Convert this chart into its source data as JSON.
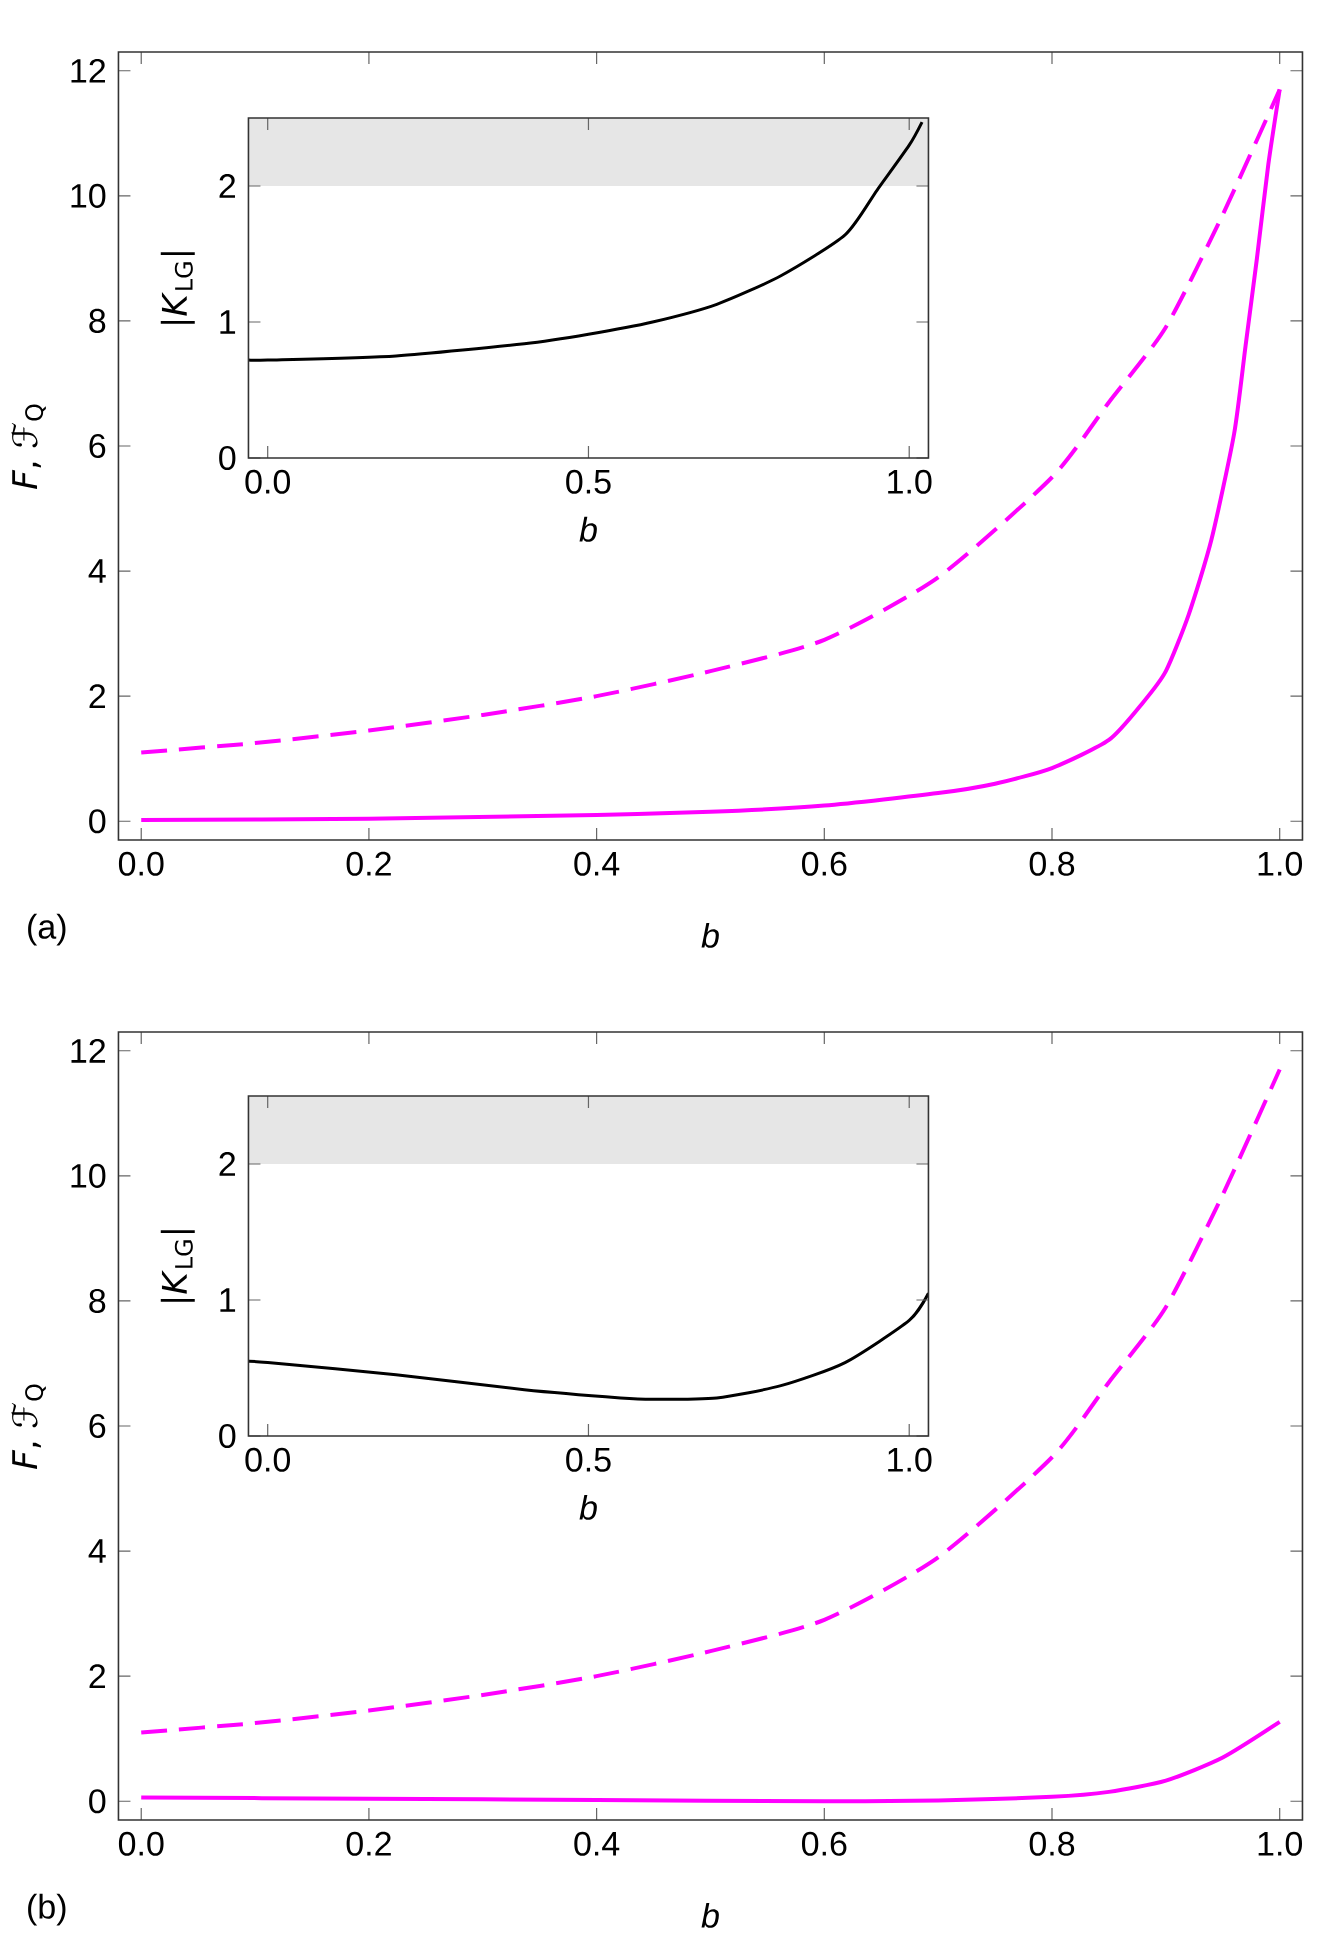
{
  "chart_data": [
    {
      "type": "line",
      "xlabel": "*b*",
      "ylabel": "*F*, ℱ$_{Q}$",
      "annotations": [
        "(a)"
      ],
      "xlim": [
        -0.02,
        1.02
      ],
      "ylim": [
        -0.3,
        12.3
      ],
      "xticks": [
        {
          "value": 0,
          "label": "0.0"
        },
        {
          "value": 0.2,
          "label": "0.2"
        },
        {
          "value": 0.4,
          "label": "0.4"
        },
        {
          "value": 0.6,
          "label": "0.6"
        },
        {
          "value": 0.8,
          "label": "0.8"
        },
        {
          "value": 1,
          "label": "1.0"
        }
      ],
      "yticks": [
        0,
        2,
        4,
        6,
        8,
        10,
        12
      ],
      "series": [
        {
          "color": "#ff00ff",
          "line_style": "dashed",
          "x": [
            0,
            0.1,
            0.2,
            0.3,
            0.4,
            0.5,
            0.6,
            0.7,
            0.8,
            0.85,
            0.9,
            0.95,
            1.0
          ],
          "values": [
            1.1,
            1.25,
            1.45,
            1.7,
            2.0,
            2.4,
            2.9,
            3.9,
            5.5,
            6.7,
            7.9,
            9.7,
            11.7
          ]
        },
        {
          "color": "#ff00ff",
          "line_style": "solid",
          "x": [
            0,
            0.2,
            0.4,
            0.5,
            0.6,
            0.7,
            0.75,
            0.8,
            0.85,
            0.88,
            0.9,
            0.92,
            0.94,
            0.96,
            0.97,
            0.98,
            0.99,
            1.0
          ],
          "values": [
            0.02,
            0.04,
            0.1,
            0.15,
            0.25,
            0.45,
            0.6,
            0.85,
            1.3,
            1.9,
            2.4,
            3.3,
            4.5,
            6.2,
            7.6,
            9.0,
            10.5,
            11.7
          ]
        }
      ]
    },
    {
      "type": "line",
      "xlabel": "*b*",
      "ylabel": "|*K*$_{LG}$|",
      "xlim": [
        -0.03,
        1.03
      ],
      "ylim": [
        0,
        2.5
      ],
      "xticks": [
        {
          "value": 0,
          "label": "0.0"
        },
        {
          "value": 0.5,
          "label": "0.5"
        },
        {
          "value": 1,
          "label": "1.0"
        }
      ],
      "yticks": [
        0,
        1,
        2
      ],
      "bands": [
        {
          "axis": "y",
          "from": 2,
          "to": 2.5,
          "color": "#e6e6e6"
        }
      ],
      "series": [
        {
          "color": "#000000",
          "line_style": "solid",
          "x": [
            -0.03,
            0,
            0.2,
            0.4,
            0.5,
            0.6,
            0.7,
            0.8,
            0.9,
            0.95,
            1.0,
            1.02
          ],
          "values": [
            0.72,
            0.72,
            0.75,
            0.84,
            0.91,
            1.0,
            1.13,
            1.34,
            1.64,
            1.97,
            2.3,
            2.47
          ]
        }
      ]
    },
    {
      "type": "line",
      "xlabel": "*b*",
      "ylabel": "*F*, ℱ$_{Q}$",
      "annotations": [
        "(b)"
      ],
      "xlim": [
        -0.02,
        1.02
      ],
      "ylim": [
        -0.3,
        12.3
      ],
      "xticks": [
        {
          "value": 0,
          "label": "0.0"
        },
        {
          "value": 0.2,
          "label": "0.2"
        },
        {
          "value": 0.4,
          "label": "0.4"
        },
        {
          "value": 0.6,
          "label": "0.6"
        },
        {
          "value": 0.8,
          "label": "0.8"
        },
        {
          "value": 1,
          "label": "1.0"
        }
      ],
      "yticks": [
        0,
        2,
        4,
        6,
        8,
        10,
        12
      ],
      "series": [
        {
          "color": "#ff00ff",
          "line_style": "dashed",
          "x": [
            0,
            0.1,
            0.2,
            0.3,
            0.4,
            0.5,
            0.6,
            0.7,
            0.8,
            0.85,
            0.9,
            0.95,
            1.0
          ],
          "values": [
            1.1,
            1.25,
            1.45,
            1.7,
            2.0,
            2.4,
            2.9,
            3.9,
            5.5,
            6.7,
            7.9,
            9.7,
            11.7
          ]
        },
        {
          "color": "#ff00ff",
          "line_style": "solid",
          "x": [
            0,
            0.2,
            0.4,
            0.6,
            0.7,
            0.8,
            0.85,
            0.9,
            0.95,
            1.0
          ],
          "values": [
            0.06,
            0.04,
            0.02,
            0.0,
            0.01,
            0.07,
            0.15,
            0.33,
            0.7,
            1.27
          ]
        }
      ]
    },
    {
      "type": "line",
      "xlabel": "*b*",
      "ylabel": "|*K*$_{LG}$|",
      "xlim": [
        -0.03,
        1.03
      ],
      "ylim": [
        0,
        2.5
      ],
      "xticks": [
        {
          "value": 0,
          "label": "0.0"
        },
        {
          "value": 0.5,
          "label": "0.5"
        },
        {
          "value": 1,
          "label": "1.0"
        }
      ],
      "yticks": [
        0,
        1,
        2
      ],
      "bands": [
        {
          "axis": "y",
          "from": 2,
          "to": 2.5,
          "color": "#e6e6e6"
        }
      ],
      "series": [
        {
          "color": "#000000",
          "line_style": "solid",
          "x": [
            -0.03,
            0,
            0.2,
            0.4,
            0.55,
            0.6,
            0.7,
            0.8,
            0.9,
            1.0,
            1.03
          ],
          "values": [
            0.55,
            0.54,
            0.45,
            0.34,
            0.28,
            0.27,
            0.28,
            0.37,
            0.54,
            0.85,
            1.05
          ]
        }
      ]
    }
  ]
}
